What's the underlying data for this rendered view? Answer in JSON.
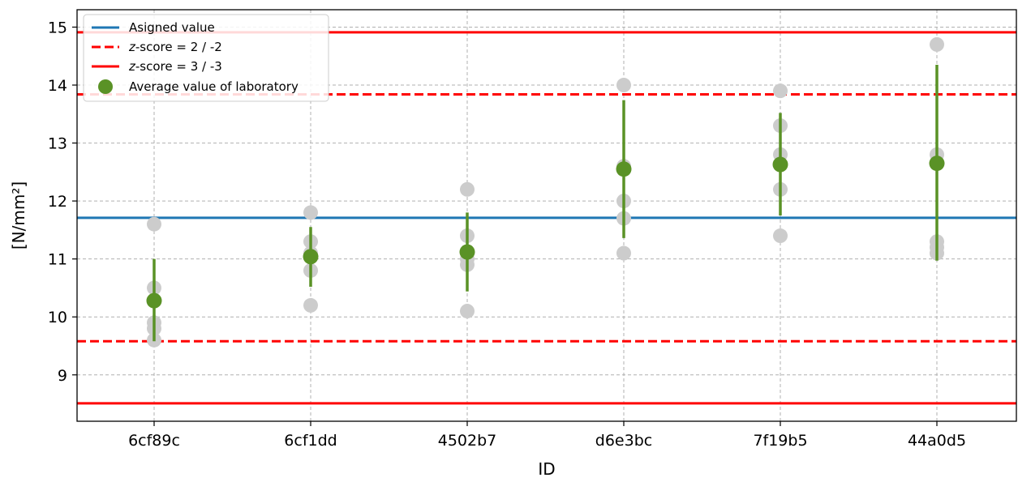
{
  "chart_data": {
    "type": "scatter",
    "xlabel": "ID",
    "ylabel": "[N/mm²]",
    "ylim": [
      8.2,
      15.3
    ],
    "yticks": [
      9,
      10,
      11,
      12,
      13,
      14,
      15
    ],
    "grid": true,
    "legend_position": "top-left",
    "categories": [
      "6cf89c",
      "6cf1dd",
      "4502b7",
      "d6e3bc",
      "7f19b5",
      "44a0d5"
    ],
    "reference_lines": [
      {
        "name": "Asigned value",
        "y": 11.71,
        "style": "solid",
        "color": "#1f77b4"
      },
      {
        "name": "z-score = 2 / -2",
        "y": [
          13.84,
          9.58
        ],
        "style": "dashed",
        "color": "#ff0000"
      },
      {
        "name": "z-score = 3 / -3",
        "y": [
          14.91,
          8.51
        ],
        "style": "solid",
        "color": "#ff0000"
      }
    ],
    "individual_values": [
      [
        11.6,
        10.5,
        9.9,
        9.8,
        9.6
      ],
      [
        11.8,
        11.3,
        11.1,
        10.8,
        10.2
      ],
      [
        12.2,
        11.4,
        11.0,
        10.9,
        10.1
      ],
      [
        14.0,
        12.6,
        12.0,
        11.7,
        11.1
      ],
      [
        13.9,
        13.3,
        12.8,
        12.2,
        11.4
      ],
      [
        14.7,
        12.8,
        11.3,
        11.2,
        11.1
      ]
    ],
    "averages": [
      10.28,
      11.04,
      11.12,
      12.55,
      12.63,
      12.65
    ],
    "error_bars": [
      [
        9.58,
        11.0
      ],
      [
        10.52,
        11.55
      ],
      [
        10.44,
        11.8
      ],
      [
        11.36,
        13.74
      ],
      [
        11.75,
        13.52
      ],
      [
        10.97,
        14.35
      ]
    ],
    "colors": {
      "average": "#5a9226",
      "individual": "#cccccc",
      "assigned": "#1f77b4",
      "zscore": "#ff0000"
    },
    "legend": [
      {
        "key": "assigned",
        "prefix": "",
        "label": "Asigned value"
      },
      {
        "key": "z2",
        "prefix": "z",
        "label": "-score = 2 / -2"
      },
      {
        "key": "z3",
        "prefix": "z",
        "label": "-score = 3 / -3"
      },
      {
        "key": "avg",
        "prefix": "",
        "label": "Average value of laboratory"
      }
    ]
  }
}
